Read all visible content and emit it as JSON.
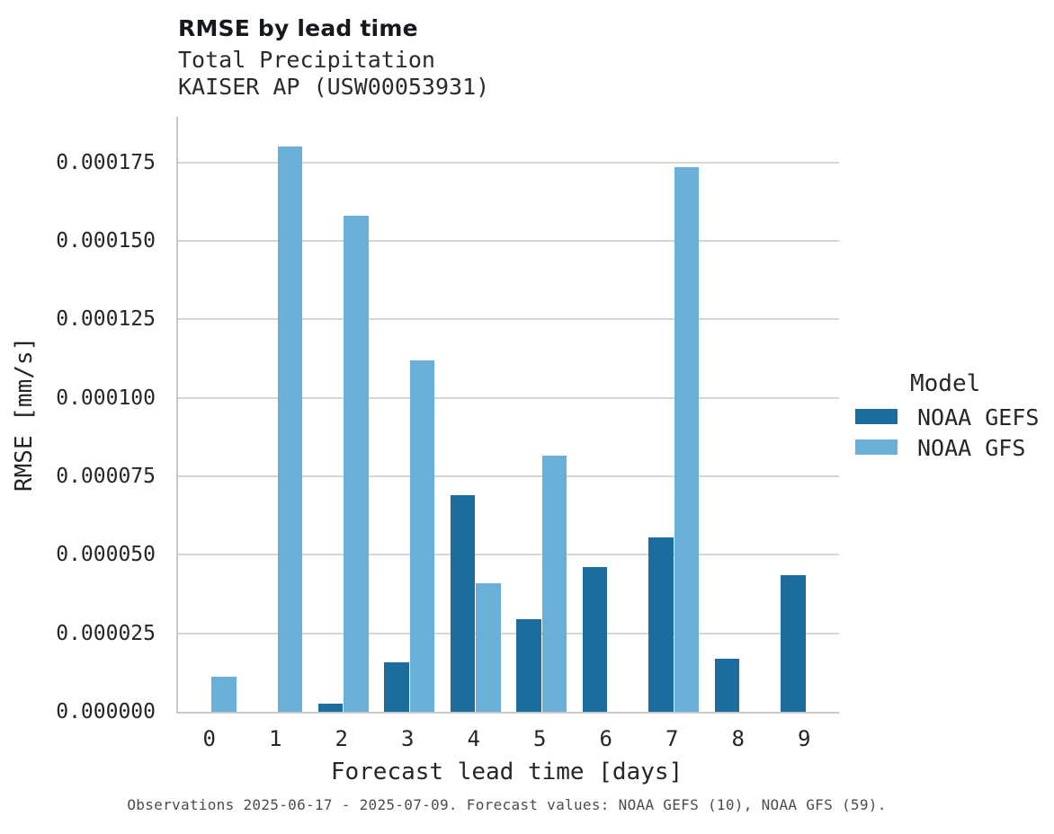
{
  "chart_data": {
    "type": "bar",
    "title": "RMSE by lead time",
    "subtitle_lines": [
      "Total Precipitation",
      "KAISER AP (USW00053931)"
    ],
    "xlabel": "Forecast lead time [days]",
    "ylabel": "RMSE [mm/s]",
    "legend_title": "Model",
    "legend_position": "right",
    "grid": "horizontal",
    "categories": [
      "0",
      "1",
      "2",
      "3",
      "4",
      "5",
      "6",
      "7",
      "8",
      "9"
    ],
    "series": [
      {
        "name": "NOAA GEFS",
        "color": "#1b6d9e",
        "values": [
          null,
          null,
          2.6e-06,
          1.58e-05,
          6.9e-05,
          2.95e-05,
          4.6e-05,
          5.55e-05,
          1.7e-05,
          4.35e-05
        ]
      },
      {
        "name": "NOAA GFS",
        "color": "#68b0d8",
        "values": [
          1.13e-05,
          0.00018,
          0.000158,
          0.000112,
          4.1e-05,
          8.16e-05,
          null,
          0.0001735,
          null,
          null
        ]
      }
    ],
    "ylim": [
      0,
      0.0001895
    ],
    "yticks": [
      0,
      2.5e-05,
      5e-05,
      7.5e-05,
      0.0001,
      0.000125,
      0.00015,
      0.000175
    ],
    "ytick_format_decimals": 6,
    "caption": "Observations 2025-06-17 - 2025-07-09. Forecast values: NOAA GEFS (10), NOAA GFS (59)."
  },
  "colors": {
    "gridline": "#d6d6d6",
    "spine": "#c8c8c8",
    "text": "#262626",
    "caption_text": "#4d4d4d"
  }
}
